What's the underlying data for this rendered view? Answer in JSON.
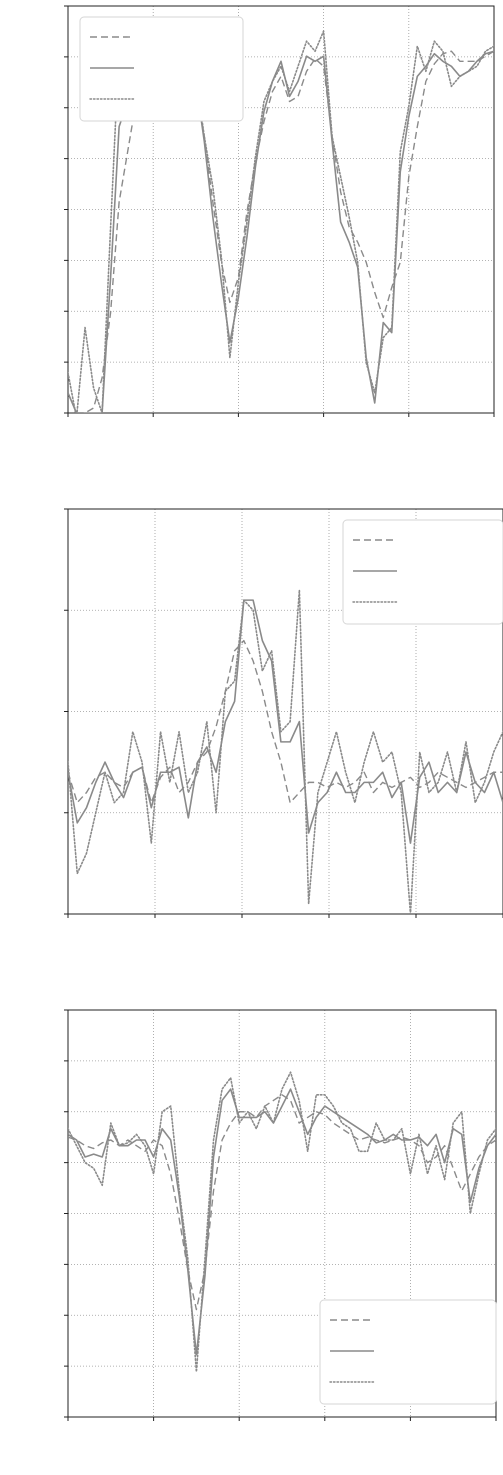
{
  "figure": {
    "background": "#ffffff",
    "grid_color": "#9a9a9a",
    "line_color": "#8a8a8a"
  },
  "chart_data": [
    {
      "type": "line",
      "title": "",
      "xlabel": "",
      "ylabel": "",
      "xlim": [
        0,
        50
      ],
      "ylim": [
        -5.7,
        2.4
      ],
      "grid": true,
      "legend_position": "top-left",
      "xticks": [],
      "yticks": [],
      "series": [
        {
          "style": "dashed",
          "x": [
            0,
            1,
            2,
            3,
            4,
            5,
            6,
            7,
            8,
            9,
            10,
            11,
            12,
            13,
            14,
            15,
            16,
            17,
            18,
            19,
            20,
            21,
            22,
            23,
            24,
            25,
            26,
            27,
            28,
            29,
            30,
            31,
            32,
            33,
            34,
            35,
            36,
            37,
            38,
            39,
            40,
            41,
            42,
            43,
            44,
            45,
            46,
            47,
            48,
            49,
            50
          ],
          "values": [
            -5.3,
            -5.7,
            -5.7,
            -5.6,
            -5.0,
            -3.7,
            -1.5,
            -0.5,
            0.5,
            0.8,
            1.2,
            1.5,
            1.35,
            1.3,
            1.1,
            0.8,
            -0.2,
            -1.5,
            -2.7,
            -3.5,
            -3.0,
            -1.7,
            -0.7,
            0.1,
            0.7,
            1.0,
            0.5,
            0.6,
            1.1,
            1.35,
            1.2,
            -0.2,
            -1.3,
            -2.0,
            -2.3,
            -2.7,
            -3.3,
            -3.8,
            -3.2,
            -2.7,
            -1.0,
            0.0,
            0.9,
            1.25,
            1.45,
            1.5,
            1.3,
            1.3,
            1.3,
            1.4,
            1.5
          ]
        },
        {
          "style": "solid",
          "x": [
            0,
            1,
            2,
            3,
            4,
            5,
            6,
            7,
            8,
            9,
            10,
            11,
            12,
            13,
            14,
            15,
            16,
            17,
            18,
            19,
            20,
            21,
            22,
            23,
            24,
            25,
            26,
            27,
            28,
            29,
            30,
            31,
            32,
            33,
            34,
            35,
            36,
            37,
            38,
            39,
            40,
            41,
            42,
            43,
            44,
            45,
            46,
            47,
            48,
            49,
            50
          ],
          "values": [
            -5.3,
            -5.7,
            -5.7,
            -5.7,
            -5.7,
            -3.0,
            0.0,
            0.5,
            0.8,
            1.2,
            1.45,
            1.55,
            1.4,
            1.2,
            1.3,
            0.9,
            -0.3,
            -1.8,
            -3.1,
            -4.3,
            -3.4,
            -2.2,
            -0.8,
            0.3,
            0.9,
            1.3,
            0.6,
            0.9,
            1.4,
            1.3,
            1.4,
            -0.3,
            -1.9,
            -2.3,
            -2.8,
            -4.6,
            -5.5,
            -3.9,
            -4.1,
            -0.9,
            0.2,
            1.0,
            1.2,
            1.45,
            1.3,
            1.2,
            1.0,
            1.1,
            1.3,
            1.45,
            1.5
          ]
        },
        {
          "style": "dotted",
          "x": [
            0,
            1,
            2,
            3,
            4,
            5,
            6,
            7,
            8,
            9,
            10,
            11,
            12,
            13,
            14,
            15,
            16,
            17,
            18,
            19,
            20,
            21,
            22,
            23,
            24,
            25,
            26,
            27,
            28,
            29,
            30,
            31,
            32,
            33,
            34,
            35,
            36,
            37,
            38,
            39,
            40,
            41,
            42,
            43,
            44,
            45,
            46,
            47,
            48,
            49,
            50
          ],
          "values": [
            -4.9,
            -5.8,
            -4.0,
            -5.2,
            -5.7,
            -2.0,
            1.6,
            0.9,
            1.0,
            1.5,
            1.9,
            1.7,
            1.6,
            1.2,
            1.8,
            1.0,
            -0.2,
            -1.2,
            -2.6,
            -4.6,
            -3.1,
            -1.9,
            -0.6,
            0.5,
            0.9,
            1.2,
            0.7,
            1.2,
            1.7,
            1.5,
            1.9,
            -0.2,
            -1.0,
            -1.8,
            -2.7,
            -4.7,
            -5.3,
            -4.2,
            -4.0,
            -0.5,
            0.4,
            1.6,
            1.1,
            1.7,
            1.5,
            0.8,
            1.0,
            1.1,
            1.2,
            1.5,
            1.6
          ]
        }
      ]
    },
    {
      "type": "line",
      "title": "",
      "xlabel": "",
      "ylabel": "",
      "xlim": [
        0,
        47
      ],
      "ylim": [
        -1.0,
        3.0
      ],
      "grid": true,
      "legend_position": "top-right",
      "xticks": [],
      "yticks": [],
      "series": [
        {
          "style": "dashed",
          "x": [
            0,
            1,
            2,
            3,
            4,
            5,
            6,
            7,
            8,
            9,
            10,
            11,
            12,
            13,
            14,
            15,
            16,
            17,
            18,
            19,
            20,
            21,
            22,
            23,
            24,
            25,
            26,
            27,
            28,
            29,
            30,
            31,
            32,
            33,
            34,
            35,
            36,
            37,
            38,
            39,
            40,
            41,
            42,
            43,
            44,
            45,
            46,
            47
          ],
          "values": [
            0.4,
            0.1,
            0.2,
            0.35,
            0.4,
            0.3,
            0.25,
            0.4,
            0.45,
            0.1,
            0.35,
            0.45,
            0.2,
            0.3,
            0.5,
            0.6,
            0.85,
            1.2,
            1.6,
            1.7,
            1.5,
            1.2,
            0.8,
            0.5,
            0.1,
            0.2,
            0.3,
            0.3,
            0.25,
            0.3,
            0.25,
            0.3,
            0.4,
            0.2,
            0.3,
            0.25,
            0.3,
            0.35,
            0.25,
            0.3,
            0.4,
            0.35,
            0.3,
            0.25,
            0.3,
            0.35,
            0.4,
            0.4
          ]
        },
        {
          "style": "solid",
          "x": [
            0,
            1,
            2,
            3,
            4,
            5,
            6,
            7,
            8,
            9,
            10,
            11,
            12,
            13,
            14,
            15,
            16,
            17,
            18,
            19,
            20,
            21,
            22,
            23,
            24,
            25,
            26,
            27,
            28,
            29,
            30,
            31,
            32,
            33,
            34,
            35,
            36,
            37,
            38,
            39,
            40,
            41,
            42,
            43,
            44,
            45,
            46,
            47
          ],
          "values": [
            0.4,
            -0.1,
            0.05,
            0.3,
            0.5,
            0.3,
            0.15,
            0.4,
            0.45,
            0.05,
            0.4,
            0.4,
            0.45,
            -0.05,
            0.5,
            0.65,
            0.4,
            0.9,
            1.1,
            2.1,
            2.1,
            1.7,
            1.5,
            0.7,
            0.7,
            0.9,
            -0.2,
            0.1,
            0.2,
            0.4,
            0.2,
            0.2,
            0.3,
            0.3,
            0.4,
            0.15,
            0.3,
            -0.3,
            0.35,
            0.5,
            0.2,
            0.3,
            0.2,
            0.6,
            0.3,
            0.2,
            0.4,
            0.1
          ]
        },
        {
          "style": "dotted",
          "x": [
            0,
            1,
            2,
            3,
            4,
            5,
            6,
            7,
            8,
            9,
            10,
            11,
            12,
            13,
            14,
            15,
            16,
            17,
            18,
            19,
            20,
            21,
            22,
            23,
            24,
            25,
            26,
            27,
            28,
            29,
            30,
            31,
            32,
            33,
            34,
            35,
            36,
            37,
            38,
            39,
            40,
            41,
            42,
            43,
            44,
            45,
            46,
            47
          ],
          "values": [
            0.5,
            -0.6,
            -0.4,
            0.0,
            0.4,
            0.1,
            0.2,
            0.8,
            0.5,
            -0.3,
            0.8,
            0.3,
            0.8,
            0.2,
            0.4,
            0.9,
            0.0,
            1.2,
            1.3,
            2.1,
            2.0,
            1.4,
            1.6,
            0.8,
            0.9,
            2.2,
            -0.9,
            0.2,
            0.5,
            0.8,
            0.4,
            0.1,
            0.5,
            0.8,
            0.5,
            0.6,
            0.2,
            -1.0,
            0.6,
            0.2,
            0.3,
            0.6,
            0.2,
            0.7,
            0.1,
            0.3,
            0.6,
            0.8
          ]
        }
      ]
    },
    {
      "type": "line",
      "title": "",
      "xlabel": "",
      "ylabel": "",
      "xlim": [
        0,
        50
      ],
      "ylim": [
        -4.8,
        2.4
      ],
      "grid": true,
      "legend_position": "bottom-right",
      "xticks": [],
      "yticks": [],
      "series": [
        {
          "style": "dashed",
          "x": [
            0,
            1,
            2,
            3,
            4,
            5,
            6,
            7,
            8,
            9,
            10,
            11,
            12,
            13,
            14,
            15,
            16,
            17,
            18,
            19,
            20,
            21,
            22,
            23,
            24,
            25,
            26,
            27,
            28,
            29,
            30,
            31,
            32,
            33,
            34,
            35,
            36,
            37,
            38,
            39,
            40,
            41,
            42,
            43,
            44,
            45,
            46,
            47,
            48,
            49,
            50
          ],
          "values": [
            0.15,
            0.1,
            0.0,
            -0.05,
            0.05,
            0.1,
            0.0,
            0.1,
            0.0,
            -0.1,
            0.1,
            0.0,
            -0.5,
            -1.3,
            -2.2,
            -2.9,
            -2.2,
            -0.8,
            0.1,
            0.4,
            0.6,
            0.6,
            0.5,
            0.7,
            0.8,
            0.9,
            0.8,
            0.4,
            0.5,
            0.6,
            0.55,
            0.4,
            0.3,
            0.2,
            0.1,
            0.15,
            0.1,
            0.05,
            0.1,
            0.15,
            0.1,
            0.0,
            -0.3,
            -0.2,
            0.0,
            -0.4,
            -0.8,
            -0.5,
            -0.2,
            0.0,
            0.1
          ]
        },
        {
          "style": "solid",
          "x": [
            0,
            1,
            2,
            3,
            4,
            5,
            6,
            7,
            8,
            9,
            10,
            11,
            12,
            13,
            14,
            15,
            16,
            17,
            18,
            19,
            20,
            21,
            22,
            23,
            24,
            25,
            26,
            27,
            28,
            29,
            30,
            31,
            32,
            33,
            34,
            35,
            36,
            37,
            38,
            39,
            40,
            41,
            42,
            43,
            44,
            45,
            46,
            47,
            48,
            49,
            50
          ],
          "values": [
            0.2,
            0.1,
            -0.2,
            -0.15,
            -0.2,
            0.3,
            0.0,
            0.0,
            0.1,
            0.1,
            -0.2,
            0.3,
            0.1,
            -0.9,
            -2.2,
            -3.7,
            -2.3,
            -0.2,
            0.8,
            1.0,
            0.5,
            0.5,
            0.5,
            0.6,
            0.4,
            0.7,
            1.0,
            0.6,
            0.2,
            0.5,
            0.7,
            0.6,
            0.5,
            0.4,
            0.3,
            0.2,
            0.05,
            0.1,
            0.2,
            0.1,
            0.1,
            0.15,
            0.0,
            0.2,
            -0.3,
            0.3,
            0.2,
            -1.0,
            -0.4,
            0.0,
            0.2
          ]
        },
        {
          "style": "dotted",
          "x": [
            0,
            1,
            2,
            3,
            4,
            5,
            6,
            7,
            8,
            9,
            10,
            11,
            12,
            13,
            14,
            15,
            16,
            17,
            18,
            19,
            20,
            21,
            22,
            23,
            24,
            25,
            26,
            27,
            28,
            29,
            30,
            31,
            32,
            33,
            34,
            35,
            36,
            37,
            38,
            39,
            40,
            41,
            42,
            43,
            44,
            45,
            46,
            47,
            48,
            49,
            50
          ],
          "values": [
            0.3,
            0.0,
            -0.3,
            -0.4,
            -0.7,
            0.4,
            0.0,
            0.05,
            0.2,
            0.0,
            -0.5,
            0.6,
            0.7,
            -0.8,
            -2.0,
            -4.0,
            -2.0,
            0.1,
            1.0,
            1.2,
            0.4,
            0.6,
            0.3,
            0.7,
            0.4,
            1.0,
            1.3,
            0.8,
            -0.1,
            0.9,
            0.9,
            0.7,
            0.4,
            0.3,
            -0.1,
            -0.1,
            0.4,
            0.1,
            0.1,
            0.3,
            -0.5,
            0.2,
            -0.5,
            0.0,
            -0.6,
            0.4,
            0.6,
            -1.2,
            -0.5,
            0.1,
            0.3
          ]
        }
      ]
    }
  ]
}
